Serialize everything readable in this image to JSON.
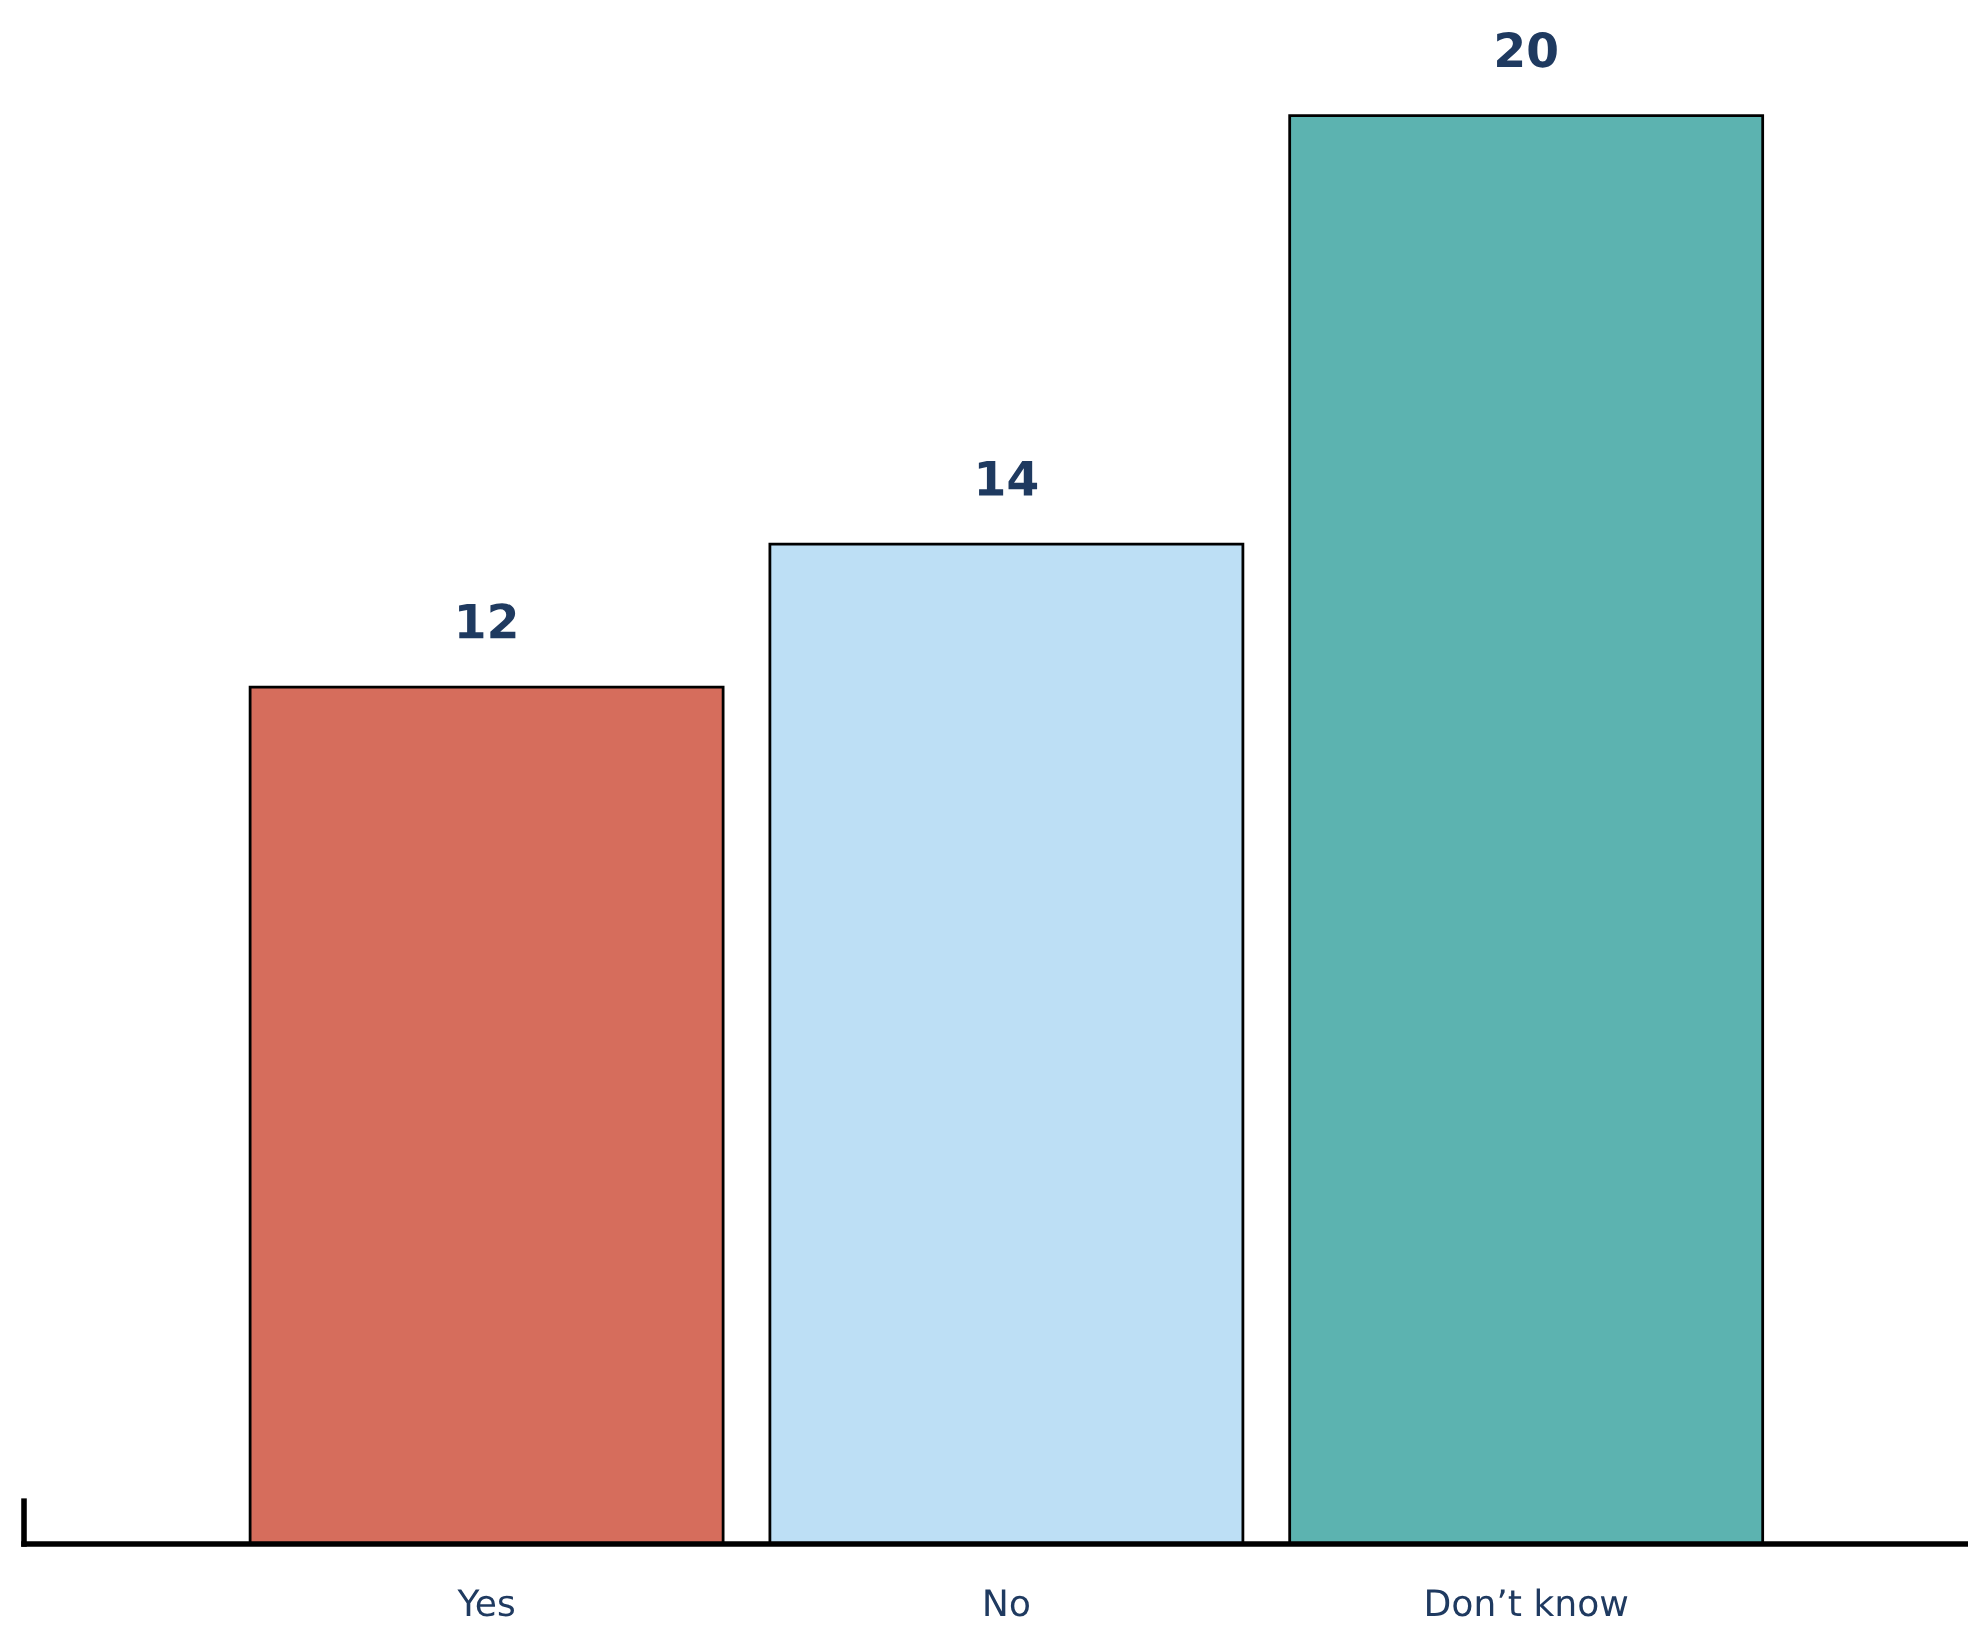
{
  "chart_data": {
    "type": "bar",
    "categories": [
      "Yes",
      "No",
      "Don’t know"
    ],
    "values": [
      12,
      14,
      20
    ],
    "colors": [
      "#d66d5c",
      "#bddff5",
      "#5cb3b0"
    ],
    "data_labels": true,
    "tick_labels": "x",
    "grid": false,
    "legend": false
  }
}
